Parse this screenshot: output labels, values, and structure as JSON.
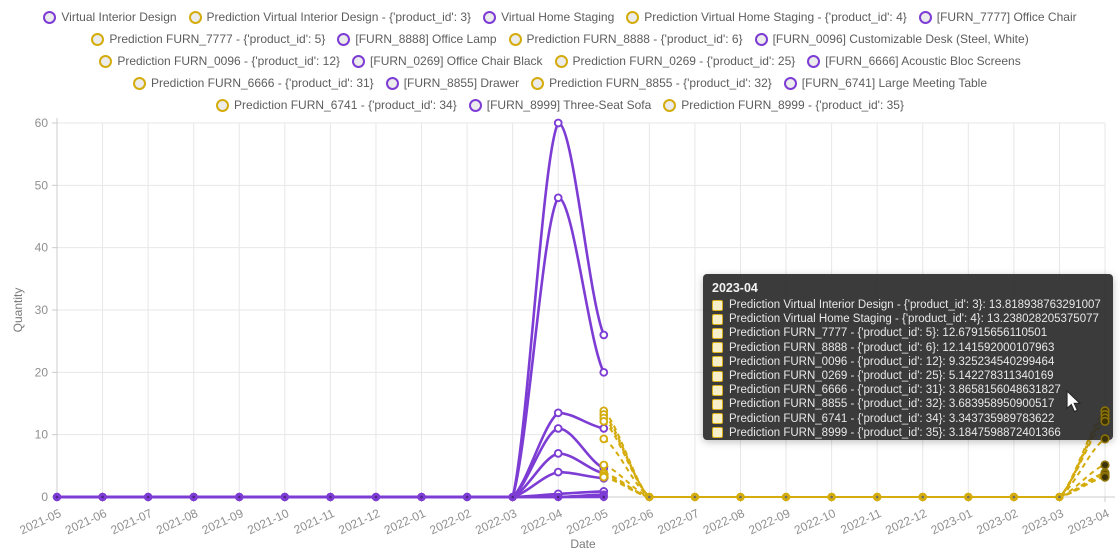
{
  "colors": {
    "actual": "#7D3CD4",
    "prediction": "#D4AC0D",
    "grid": "#e7e7e7",
    "axis": "#cccccc",
    "tick_text": "#8f8f8f",
    "legend_text": "#5d5d5d",
    "marker_core": "#4a2586",
    "marker_core_pred": "#6b6b6b",
    "highlight_fill": "#3c3207",
    "highlight_stroke": "#8a7206"
  },
  "axes": {
    "ylabel": "Quantity",
    "xlabel": "Date"
  },
  "legend": {
    "rows": [
      [
        {
          "label": "Virtual Interior Design",
          "type": "actual"
        },
        {
          "label": "Prediction Virtual Interior Design - {'product_id': 3}",
          "type": "prediction"
        },
        {
          "label": "Virtual Home Staging",
          "type": "actual"
        },
        {
          "label": "Prediction Virtual Home Staging - {'product_id': 4}",
          "type": "prediction"
        },
        {
          "label": "[FURN_7777] Office Chair",
          "type": "actual"
        }
      ],
      [
        {
          "label": "Prediction FURN_7777 - {'product_id': 5}",
          "type": "prediction"
        },
        {
          "label": "[FURN_8888] Office Lamp",
          "type": "actual"
        },
        {
          "label": "Prediction FURN_8888 - {'product_id': 6}",
          "type": "prediction"
        },
        {
          "label": "[FURN_0096] Customizable Desk (Steel, White)",
          "type": "actual"
        }
      ],
      [
        {
          "label": "Prediction FURN_0096 - {'product_id': 12}",
          "type": "prediction"
        },
        {
          "label": "[FURN_0269] Office Chair Black",
          "type": "actual"
        },
        {
          "label": "Prediction FURN_0269 - {'product_id': 25}",
          "type": "prediction"
        },
        {
          "label": "[FURN_6666] Acoustic Bloc Screens",
          "type": "actual"
        }
      ],
      [
        {
          "label": "Prediction FURN_6666 - {'product_id': 31}",
          "type": "prediction"
        },
        {
          "label": "[FURN_8855] Drawer",
          "type": "actual"
        },
        {
          "label": "Prediction FURN_8855 - {'product_id': 32}",
          "type": "prediction"
        },
        {
          "label": "[FURN_6741] Large Meeting Table",
          "type": "actual"
        }
      ],
      [
        {
          "label": "Prediction FURN_6741 - {'product_id': 34}",
          "type": "prediction"
        },
        {
          "label": "[FURN_8999] Three-Seat Sofa",
          "type": "actual"
        },
        {
          "label": "Prediction FURN_8999 - {'product_id': 35}",
          "type": "prediction"
        }
      ]
    ]
  },
  "tooltip": {
    "title": "2023-04",
    "rows": [
      {
        "label": "Prediction Virtual Interior Design - {'product_id': 3}",
        "value": "13.818938763291007"
      },
      {
        "label": "Prediction Virtual Home Staging - {'product_id': 4}",
        "value": "13.238028205375077"
      },
      {
        "label": "Prediction FURN_7777 - {'product_id': 5}",
        "value": "12.67915656110501"
      },
      {
        "label": "Prediction FURN_8888 - {'product_id': 6}",
        "value": "12.141592000107963"
      },
      {
        "label": "Prediction FURN_0096 - {'product_id': 12}",
        "value": "9.325234540299464"
      },
      {
        "label": "Prediction FURN_0269 - {'product_id': 25}",
        "value": "5.142278311340169"
      },
      {
        "label": "Prediction FURN_6666 - {'product_id': 31}",
        "value": "3.8658156048631827"
      },
      {
        "label": "Prediction FURN_8855 - {'product_id': 32}",
        "value": "3.683958950900517"
      },
      {
        "label": "Prediction FURN_6741 - {'product_id': 34}",
        "value": "3.343735989783622"
      },
      {
        "label": "Prediction FURN_8999 - {'product_id': 35}",
        "value": "3.1847598872401366"
      }
    ]
  },
  "chart_data": {
    "type": "line",
    "x": [
      "2021-05",
      "2021-06",
      "2021-07",
      "2021-08",
      "2021-09",
      "2021-10",
      "2021-11",
      "2021-12",
      "2022-01",
      "2022-02",
      "2022-03",
      "2022-04",
      "2022-05",
      "2022-06",
      "2022-07",
      "2022-08",
      "2022-09",
      "2022-10",
      "2022-11",
      "2022-12",
      "2023-01",
      "2023-02",
      "2023-03",
      "2023-04"
    ],
    "xlabel": "Date",
    "ylabel": "Quantity",
    "ylim": [
      0,
      60
    ],
    "yticks": [
      0,
      10,
      20,
      30,
      40,
      50,
      60
    ],
    "grid": true,
    "legend_position": "top",
    "series": [
      {
        "name": "Virtual Interior Design",
        "role": "actual",
        "dash": false,
        "values": [
          0,
          0,
          0,
          0,
          0,
          0,
          0,
          0,
          0,
          0,
          0,
          60,
          26,
          null,
          null,
          null,
          null,
          null,
          null,
          null,
          null,
          null,
          null,
          null
        ]
      },
      {
        "name": "Prediction Virtual Interior Design - {'product_id': 3}",
        "role": "prediction",
        "dash": true,
        "values": [
          null,
          null,
          null,
          null,
          null,
          null,
          null,
          null,
          null,
          null,
          null,
          null,
          13.818938763291007,
          0,
          0,
          0,
          0,
          0,
          0,
          0,
          0,
          0,
          0,
          13.818938763291007
        ]
      },
      {
        "name": "Virtual Home Staging",
        "role": "actual",
        "dash": false,
        "values": [
          0,
          0,
          0,
          0,
          0,
          0,
          0,
          0,
          0,
          0,
          0,
          48,
          20,
          null,
          null,
          null,
          null,
          null,
          null,
          null,
          null,
          null,
          null,
          null
        ]
      },
      {
        "name": "Prediction Virtual Home Staging - {'product_id': 4}",
        "role": "prediction",
        "dash": true,
        "values": [
          null,
          null,
          null,
          null,
          null,
          null,
          null,
          null,
          null,
          null,
          null,
          null,
          13.238028205375077,
          0,
          0,
          0,
          0,
          0,
          0,
          0,
          0,
          0,
          0,
          13.238028205375077
        ]
      },
      {
        "name": "[FURN_7777] Office Chair",
        "role": "actual",
        "dash": false,
        "values": [
          0,
          0,
          0,
          0,
          0,
          0,
          0,
          0,
          0,
          0,
          0,
          13.5,
          11,
          null,
          null,
          null,
          null,
          null,
          null,
          null,
          null,
          null,
          null,
          null
        ]
      },
      {
        "name": "Prediction FURN_7777 - {'product_id': 5}",
        "role": "prediction",
        "dash": true,
        "values": [
          null,
          null,
          null,
          null,
          null,
          null,
          null,
          null,
          null,
          null,
          null,
          null,
          12.67915656110501,
          0,
          0,
          0,
          0,
          0,
          0,
          0,
          0,
          0,
          0,
          12.67915656110501
        ]
      },
      {
        "name": "[FURN_8888] Office Lamp",
        "role": "actual",
        "dash": false,
        "values": [
          0,
          0,
          0,
          0,
          0,
          0,
          0,
          0,
          0,
          0,
          0,
          11,
          4.6,
          null,
          null,
          null,
          null,
          null,
          null,
          null,
          null,
          null,
          null,
          null
        ]
      },
      {
        "name": "Prediction FURN_8888 - {'product_id': 6}",
        "role": "prediction",
        "dash": true,
        "values": [
          null,
          null,
          null,
          null,
          null,
          null,
          null,
          null,
          null,
          null,
          null,
          null,
          12.141592000107963,
          0,
          0,
          0,
          0,
          0,
          0,
          0,
          0,
          0,
          0,
          12.141592000107963
        ]
      },
      {
        "name": "[FURN_0096] Customizable Desk (Steel, White)",
        "role": "actual",
        "dash": false,
        "values": [
          0,
          0,
          0,
          0,
          0,
          0,
          0,
          0,
          0,
          0,
          0,
          7,
          3.8,
          null,
          null,
          null,
          null,
          null,
          null,
          null,
          null,
          null,
          null,
          null
        ]
      },
      {
        "name": "Prediction FURN_0096 - {'product_id': 12}",
        "role": "prediction",
        "dash": true,
        "values": [
          null,
          null,
          null,
          null,
          null,
          null,
          null,
          null,
          null,
          null,
          null,
          null,
          9.325234540299464,
          0,
          0,
          0,
          0,
          0,
          0,
          0,
          0,
          0,
          0,
          9.325234540299464
        ]
      },
      {
        "name": "[FURN_0269] Office Chair Black",
        "role": "actual",
        "dash": false,
        "values": [
          0,
          0,
          0,
          0,
          0,
          0,
          0,
          0,
          0,
          0,
          0,
          4,
          3,
          null,
          null,
          null,
          null,
          null,
          null,
          null,
          null,
          null,
          null,
          null
        ]
      },
      {
        "name": "Prediction FURN_0269 - {'product_id': 25}",
        "role": "prediction",
        "dash": true,
        "values": [
          null,
          null,
          null,
          null,
          null,
          null,
          null,
          null,
          null,
          null,
          null,
          null,
          5.142278311340169,
          0,
          0,
          0,
          0,
          0,
          0,
          0,
          0,
          0,
          0,
          5.142278311340169
        ]
      },
      {
        "name": "[FURN_6666] Acoustic Bloc Screens",
        "role": "actual",
        "dash": false,
        "values": [
          0,
          0,
          0,
          0,
          0,
          0,
          0,
          0,
          0,
          0,
          0,
          0.5,
          0.9,
          null,
          null,
          null,
          null,
          null,
          null,
          null,
          null,
          null,
          null,
          null
        ]
      },
      {
        "name": "Prediction FURN_6666 - {'product_id': 31}",
        "role": "prediction",
        "dash": true,
        "values": [
          null,
          null,
          null,
          null,
          null,
          null,
          null,
          null,
          null,
          null,
          null,
          null,
          3.8658156048631827,
          0,
          0,
          0,
          0,
          0,
          0,
          0,
          0,
          0,
          0,
          3.8658156048631827
        ]
      },
      {
        "name": "[FURN_8855] Drawer",
        "role": "actual",
        "dash": false,
        "values": [
          0,
          0,
          0,
          0,
          0,
          0,
          0,
          0,
          0,
          0,
          0,
          0,
          0.4,
          null,
          null,
          null,
          null,
          null,
          null,
          null,
          null,
          null,
          null,
          null
        ]
      },
      {
        "name": "Prediction FURN_8855 - {'product_id': 32}",
        "role": "prediction",
        "dash": true,
        "values": [
          null,
          null,
          null,
          null,
          null,
          null,
          null,
          null,
          null,
          null,
          null,
          null,
          3.683958950900517,
          0,
          0,
          0,
          0,
          0,
          0,
          0,
          0,
          0,
          0,
          3.683958950900517
        ]
      },
      {
        "name": "[FURN_6741] Large Meeting Table",
        "role": "actual",
        "dash": false,
        "values": [
          0,
          0,
          0,
          0,
          0,
          0,
          0,
          0,
          0,
          0,
          0,
          0,
          0.1,
          null,
          null,
          null,
          null,
          null,
          null,
          null,
          null,
          null,
          null,
          null
        ]
      },
      {
        "name": "Prediction FURN_6741 - {'product_id': 34}",
        "role": "prediction",
        "dash": true,
        "values": [
          null,
          null,
          null,
          null,
          null,
          null,
          null,
          null,
          null,
          null,
          null,
          null,
          3.343735989783622,
          0,
          0,
          0,
          0,
          0,
          0,
          0,
          0,
          0,
          0,
          3.343735989783622
        ]
      },
      {
        "name": "[FURN_8999] Three-Seat Sofa",
        "role": "actual",
        "dash": false,
        "values": [
          0,
          0,
          0,
          0,
          0,
          0,
          0,
          0,
          0,
          0,
          0,
          0,
          0,
          null,
          null,
          null,
          null,
          null,
          null,
          null,
          null,
          null,
          null,
          null
        ]
      },
      {
        "name": "Prediction FURN_8999 - {'product_id': 35}",
        "role": "prediction",
        "dash": true,
        "values": [
          null,
          null,
          null,
          null,
          null,
          null,
          null,
          null,
          null,
          null,
          null,
          null,
          3.1847598872401366,
          0,
          0,
          0,
          0,
          0,
          0,
          0,
          0,
          0,
          0,
          3.1847598872401366
        ]
      }
    ]
  }
}
